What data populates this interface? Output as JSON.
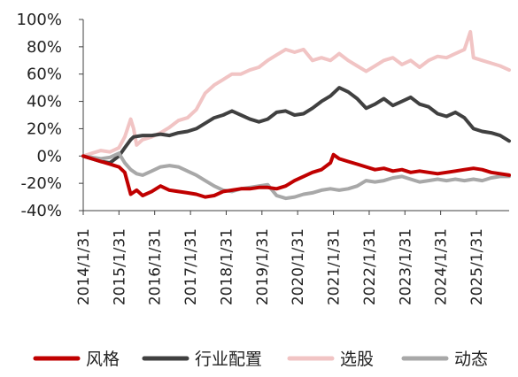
{
  "chart_data": {
    "type": "line",
    "title": "",
    "xlabel": "",
    "ylabel": "",
    "ylim": [
      -40,
      100
    ],
    "xlim": [
      "2014-01-31",
      "2025-12-31"
    ],
    "grid": false,
    "legend_position": "bottom",
    "y_ticks": [
      "100%",
      "80%",
      "60%",
      "40%",
      "20%",
      "0%",
      "-20%",
      "-40%"
    ],
    "y_tick_values": [
      100,
      80,
      60,
      40,
      20,
      0,
      -20,
      -40
    ],
    "x_ticks": [
      "2014/1/31",
      "2015/1/31",
      "2016/1/31",
      "2017/1/31",
      "2018/1/31",
      "2019/1/31",
      "2020/1/31",
      "2021/1/31",
      "2022/1/31",
      "2023/1/31",
      "2024/1/31",
      "2025/1/31"
    ],
    "x_tick_dates": [
      "2014-01-31",
      "2015-01-31",
      "2016-01-31",
      "2017-01-31",
      "2018-01-31",
      "2019-01-31",
      "2020-01-31",
      "2021-01-31",
      "2022-01-31",
      "2023-01-31",
      "2024-01-31",
      "2025-01-31"
    ],
    "series": [
      {
        "name": "选股",
        "color": "#f1c4c4",
        "width": 4,
        "points": [
          [
            "2014-01-31",
            0
          ],
          [
            "2014-04-30",
            2
          ],
          [
            "2014-07-31",
            4
          ],
          [
            "2014-10-31",
            3
          ],
          [
            "2015-01-31",
            6
          ],
          [
            "2015-03-31",
            14
          ],
          [
            "2015-05-31",
            27
          ],
          [
            "2015-06-30",
            20
          ],
          [
            "2015-07-31",
            8
          ],
          [
            "2015-09-30",
            12
          ],
          [
            "2015-12-31",
            14
          ],
          [
            "2016-03-31",
            17
          ],
          [
            "2016-06-30",
            21
          ],
          [
            "2016-09-30",
            26
          ],
          [
            "2016-12-31",
            28
          ],
          [
            "2017-03-31",
            34
          ],
          [
            "2017-06-30",
            46
          ],
          [
            "2017-09-30",
            52
          ],
          [
            "2017-12-31",
            56
          ],
          [
            "2018-03-31",
            60
          ],
          [
            "2018-06-30",
            60
          ],
          [
            "2018-09-30",
            63
          ],
          [
            "2018-12-31",
            65
          ],
          [
            "2019-03-31",
            70
          ],
          [
            "2019-06-30",
            74
          ],
          [
            "2019-09-30",
            78
          ],
          [
            "2019-12-31",
            76
          ],
          [
            "2020-03-31",
            78
          ],
          [
            "2020-06-30",
            70
          ],
          [
            "2020-09-30",
            72
          ],
          [
            "2020-12-31",
            70
          ],
          [
            "2021-03-31",
            75
          ],
          [
            "2021-06-30",
            70
          ],
          [
            "2021-09-30",
            66
          ],
          [
            "2021-12-31",
            62
          ],
          [
            "2022-03-31",
            66
          ],
          [
            "2022-06-30",
            70
          ],
          [
            "2022-09-30",
            72
          ],
          [
            "2022-12-31",
            67
          ],
          [
            "2023-03-31",
            70
          ],
          [
            "2023-06-30",
            65
          ],
          [
            "2023-09-30",
            70
          ],
          [
            "2023-12-31",
            73
          ],
          [
            "2024-03-31",
            72
          ],
          [
            "2024-06-30",
            75
          ],
          [
            "2024-09-30",
            78
          ],
          [
            "2024-11-30",
            91
          ],
          [
            "2024-12-31",
            72
          ],
          [
            "2025-03-31",
            70
          ],
          [
            "2025-06-30",
            68
          ],
          [
            "2025-09-30",
            66
          ],
          [
            "2025-12-31",
            63
          ]
        ]
      },
      {
        "name": "行业配置",
        "color": "#404040",
        "width": 4,
        "points": [
          [
            "2014-01-31",
            0
          ],
          [
            "2014-04-30",
            -2
          ],
          [
            "2014-07-31",
            -4
          ],
          [
            "2014-10-31",
            -5
          ],
          [
            "2015-01-31",
            0
          ],
          [
            "2015-03-31",
            6
          ],
          [
            "2015-05-31",
            12
          ],
          [
            "2015-06-30",
            14
          ],
          [
            "2015-09-30",
            15
          ],
          [
            "2015-12-31",
            15
          ],
          [
            "2016-03-31",
            16
          ],
          [
            "2016-06-30",
            15
          ],
          [
            "2016-09-30",
            17
          ],
          [
            "2016-12-31",
            18
          ],
          [
            "2017-03-31",
            20
          ],
          [
            "2017-06-30",
            24
          ],
          [
            "2017-09-30",
            28
          ],
          [
            "2017-12-31",
            30
          ],
          [
            "2018-03-31",
            33
          ],
          [
            "2018-06-30",
            30
          ],
          [
            "2018-09-30",
            27
          ],
          [
            "2018-12-31",
            25
          ],
          [
            "2019-03-31",
            27
          ],
          [
            "2019-06-30",
            32
          ],
          [
            "2019-09-30",
            33
          ],
          [
            "2019-12-31",
            30
          ],
          [
            "2020-03-31",
            31
          ],
          [
            "2020-06-30",
            35
          ],
          [
            "2020-09-30",
            40
          ],
          [
            "2020-12-31",
            44
          ],
          [
            "2021-03-31",
            50
          ],
          [
            "2021-06-30",
            47
          ],
          [
            "2021-09-30",
            42
          ],
          [
            "2021-12-31",
            35
          ],
          [
            "2022-03-31",
            38
          ],
          [
            "2022-06-30",
            42
          ],
          [
            "2022-09-30",
            37
          ],
          [
            "2022-12-31",
            40
          ],
          [
            "2023-03-31",
            43
          ],
          [
            "2023-06-30",
            38
          ],
          [
            "2023-09-30",
            36
          ],
          [
            "2023-12-31",
            31
          ],
          [
            "2024-03-31",
            29
          ],
          [
            "2024-06-30",
            32
          ],
          [
            "2024-09-30",
            28
          ],
          [
            "2024-12-31",
            20
          ],
          [
            "2025-03-31",
            18
          ],
          [
            "2025-06-30",
            17
          ],
          [
            "2025-09-30",
            15
          ],
          [
            "2025-12-31",
            11
          ]
        ]
      },
      {
        "name": "动态",
        "color": "#a8a8a8",
        "width": 4,
        "points": [
          [
            "2014-01-31",
            0
          ],
          [
            "2014-04-30",
            -1
          ],
          [
            "2014-07-31",
            -2
          ],
          [
            "2014-10-31",
            -1
          ],
          [
            "2015-01-31",
            2
          ],
          [
            "2015-03-31",
            -5
          ],
          [
            "2015-05-31",
            -10
          ],
          [
            "2015-07-31",
            -13
          ],
          [
            "2015-09-30",
            -14
          ],
          [
            "2015-12-31",
            -11
          ],
          [
            "2016-03-31",
            -8
          ],
          [
            "2016-06-30",
            -7
          ],
          [
            "2016-09-30",
            -8
          ],
          [
            "2016-12-31",
            -11
          ],
          [
            "2017-03-31",
            -14
          ],
          [
            "2017-06-30",
            -18
          ],
          [
            "2017-09-30",
            -22
          ],
          [
            "2017-12-31",
            -25
          ],
          [
            "2018-03-31",
            -26
          ],
          [
            "2018-06-30",
            -24
          ],
          [
            "2018-09-30",
            -23
          ],
          [
            "2018-12-31",
            -22
          ],
          [
            "2019-03-31",
            -21
          ],
          [
            "2019-06-30",
            -29
          ],
          [
            "2019-09-30",
            -31
          ],
          [
            "2019-12-31",
            -30
          ],
          [
            "2020-03-31",
            -28
          ],
          [
            "2020-06-30",
            -27
          ],
          [
            "2020-09-30",
            -25
          ],
          [
            "2020-12-31",
            -24
          ],
          [
            "2021-03-31",
            -25
          ],
          [
            "2021-06-30",
            -24
          ],
          [
            "2021-09-30",
            -22
          ],
          [
            "2021-12-31",
            -18
          ],
          [
            "2022-03-31",
            -19
          ],
          [
            "2022-06-30",
            -18
          ],
          [
            "2022-09-30",
            -16
          ],
          [
            "2022-12-31",
            -15
          ],
          [
            "2023-03-31",
            -17
          ],
          [
            "2023-06-30",
            -19
          ],
          [
            "2023-09-30",
            -18
          ],
          [
            "2023-12-31",
            -17
          ],
          [
            "2024-03-31",
            -18
          ],
          [
            "2024-06-30",
            -17
          ],
          [
            "2024-09-30",
            -18
          ],
          [
            "2024-12-31",
            -17
          ],
          [
            "2025-03-31",
            -18
          ],
          [
            "2025-06-30",
            -16
          ],
          [
            "2025-09-30",
            -15
          ],
          [
            "2025-12-31",
            -15
          ]
        ]
      },
      {
        "name": "风格",
        "color": "#c00000",
        "width": 4,
        "points": [
          [
            "2014-01-31",
            0
          ],
          [
            "2014-04-30",
            -2
          ],
          [
            "2014-07-31",
            -4
          ],
          [
            "2014-10-31",
            -6
          ],
          [
            "2015-01-31",
            -8
          ],
          [
            "2015-03-31",
            -12
          ],
          [
            "2015-05-31",
            -28
          ],
          [
            "2015-07-31",
            -25
          ],
          [
            "2015-09-30",
            -29
          ],
          [
            "2015-12-31",
            -26
          ],
          [
            "2016-03-31",
            -22
          ],
          [
            "2016-06-30",
            -25
          ],
          [
            "2016-09-30",
            -26
          ],
          [
            "2016-12-31",
            -27
          ],
          [
            "2017-03-31",
            -28
          ],
          [
            "2017-06-30",
            -30
          ],
          [
            "2017-09-30",
            -29
          ],
          [
            "2017-12-31",
            -26
          ],
          [
            "2018-03-31",
            -25
          ],
          [
            "2018-06-30",
            -24
          ],
          [
            "2018-09-30",
            -24
          ],
          [
            "2018-12-31",
            -23
          ],
          [
            "2019-03-31",
            -23
          ],
          [
            "2019-06-30",
            -24
          ],
          [
            "2019-09-30",
            -22
          ],
          [
            "2019-12-31",
            -18
          ],
          [
            "2020-03-31",
            -15
          ],
          [
            "2020-06-30",
            -12
          ],
          [
            "2020-09-30",
            -10
          ],
          [
            "2020-12-31",
            -5
          ],
          [
            "2021-01-31",
            1
          ],
          [
            "2021-03-31",
            -2
          ],
          [
            "2021-06-30",
            -4
          ],
          [
            "2021-09-30",
            -6
          ],
          [
            "2021-12-31",
            -8
          ],
          [
            "2022-03-31",
            -10
          ],
          [
            "2022-06-30",
            -9
          ],
          [
            "2022-09-30",
            -11
          ],
          [
            "2022-12-31",
            -10
          ],
          [
            "2023-03-31",
            -12
          ],
          [
            "2023-06-30",
            -11
          ],
          [
            "2023-09-30",
            -12
          ],
          [
            "2023-12-31",
            -13
          ],
          [
            "2024-03-31",
            -12
          ],
          [
            "2024-06-30",
            -11
          ],
          [
            "2024-09-30",
            -10
          ],
          [
            "2024-12-31",
            -9
          ],
          [
            "2025-03-31",
            -10
          ],
          [
            "2025-06-30",
            -12
          ],
          [
            "2025-09-30",
            -13
          ],
          [
            "2025-12-31",
            -14
          ]
        ]
      }
    ],
    "legend": [
      {
        "label": "风格",
        "color": "#c00000"
      },
      {
        "label": "行业配置",
        "color": "#404040"
      },
      {
        "label": "选股",
        "color": "#f1c4c4"
      },
      {
        "label": "动态",
        "color": "#a8a8a8"
      }
    ]
  }
}
